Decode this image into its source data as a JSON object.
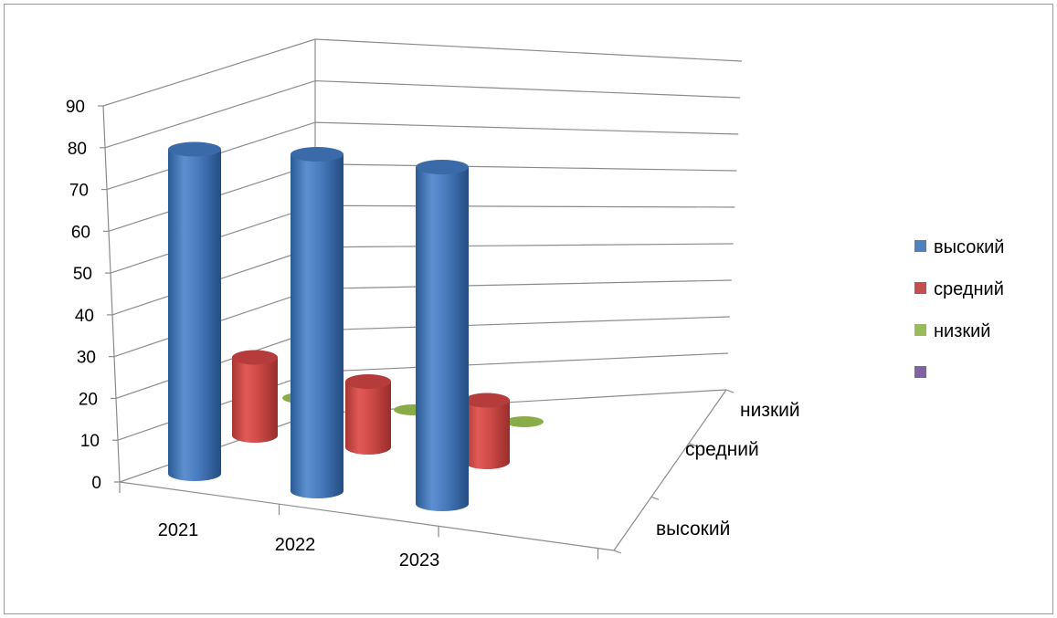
{
  "chart_data": {
    "type": "bar",
    "subtype": "3d-cylinder",
    "title": "",
    "categories": [
      "2021",
      "2022",
      "2023"
    ],
    "series": [
      {
        "name": "высокий",
        "values": [
          79,
          82,
          82
        ],
        "color": "#4F81BD"
      },
      {
        "name": "средний",
        "values": [
          19,
          16,
          15
        ],
        "color": "#C0504D"
      },
      {
        "name": "низкий",
        "values": [
          0,
          0,
          0
        ],
        "color": "#9BBB59"
      }
    ],
    "depth_labels": [
      "низкий",
      "средний",
      "высокий"
    ],
    "y_ticks": [
      "0",
      "10",
      "20",
      "30",
      "40",
      "50",
      "60",
      "70",
      "80",
      "90"
    ],
    "ylim": [
      0,
      90
    ],
    "grid": true,
    "legend": {
      "position": "right",
      "entries": [
        {
          "label": "высокий",
          "color": "#4F81BD"
        },
        {
          "label": "средний",
          "color": "#C0504D"
        },
        {
          "label": "низкий",
          "color": "#9BBB59"
        },
        {
          "label": "",
          "color": "#8064A2"
        }
      ]
    }
  }
}
